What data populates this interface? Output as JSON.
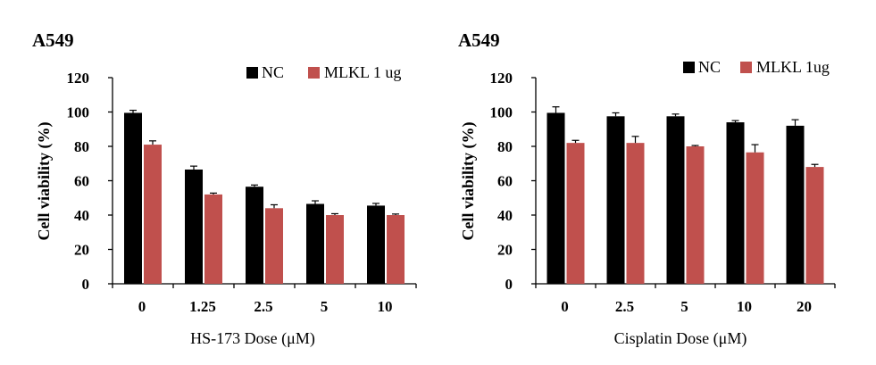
{
  "chart_data": [
    {
      "type": "bar",
      "title": "A549",
      "xlabel": "HS-173 Dose (μM)",
      "ylabel": "Cell viability (%)",
      "ylim": [
        0,
        120
      ],
      "yticks": [
        "0",
        "20",
        "40",
        "60",
        "80",
        "100",
        "120"
      ],
      "categories": [
        "0",
        "1.25",
        "2.5",
        "5",
        "10"
      ],
      "legend_position": "top-right",
      "series": [
        {
          "name": "NC",
          "color": "#000000",
          "values": [
            99.5,
            66.5,
            56.5,
            46.5,
            45.5
          ],
          "errors": [
            1.5,
            2.0,
            1.0,
            1.8,
            1.3
          ]
        },
        {
          "name": "MLKL 1 ug",
          "color": "#c0504d",
          "values": [
            81.0,
            52.0,
            44.0,
            40.0,
            40.0
          ],
          "errors": [
            2.2,
            0.8,
            2.0,
            0.8,
            0.6
          ]
        }
      ]
    },
    {
      "type": "bar",
      "title": "A549",
      "xlabel": "Cisplatin Dose (μM)",
      "ylabel": "Cell viability (%)",
      "ylim": [
        0,
        120
      ],
      "yticks": [
        "0",
        "20",
        "40",
        "60",
        "80",
        "100",
        "120"
      ],
      "categories": [
        "0",
        "2.5",
        "5",
        "10",
        "20"
      ],
      "legend_position": "top-right",
      "series": [
        {
          "name": "NC",
          "color": "#000000",
          "values": [
            99.5,
            97.5,
            97.5,
            94.0,
            92.0
          ],
          "errors": [
            3.5,
            2.0,
            1.3,
            1.0,
            3.5
          ]
        },
        {
          "name": "MLKL 1ug",
          "color": "#c0504d",
          "values": [
            82.0,
            82.0,
            80.0,
            76.5,
            68.0
          ],
          "errors": [
            1.5,
            3.8,
            0.5,
            4.5,
            1.5
          ]
        }
      ]
    }
  ]
}
